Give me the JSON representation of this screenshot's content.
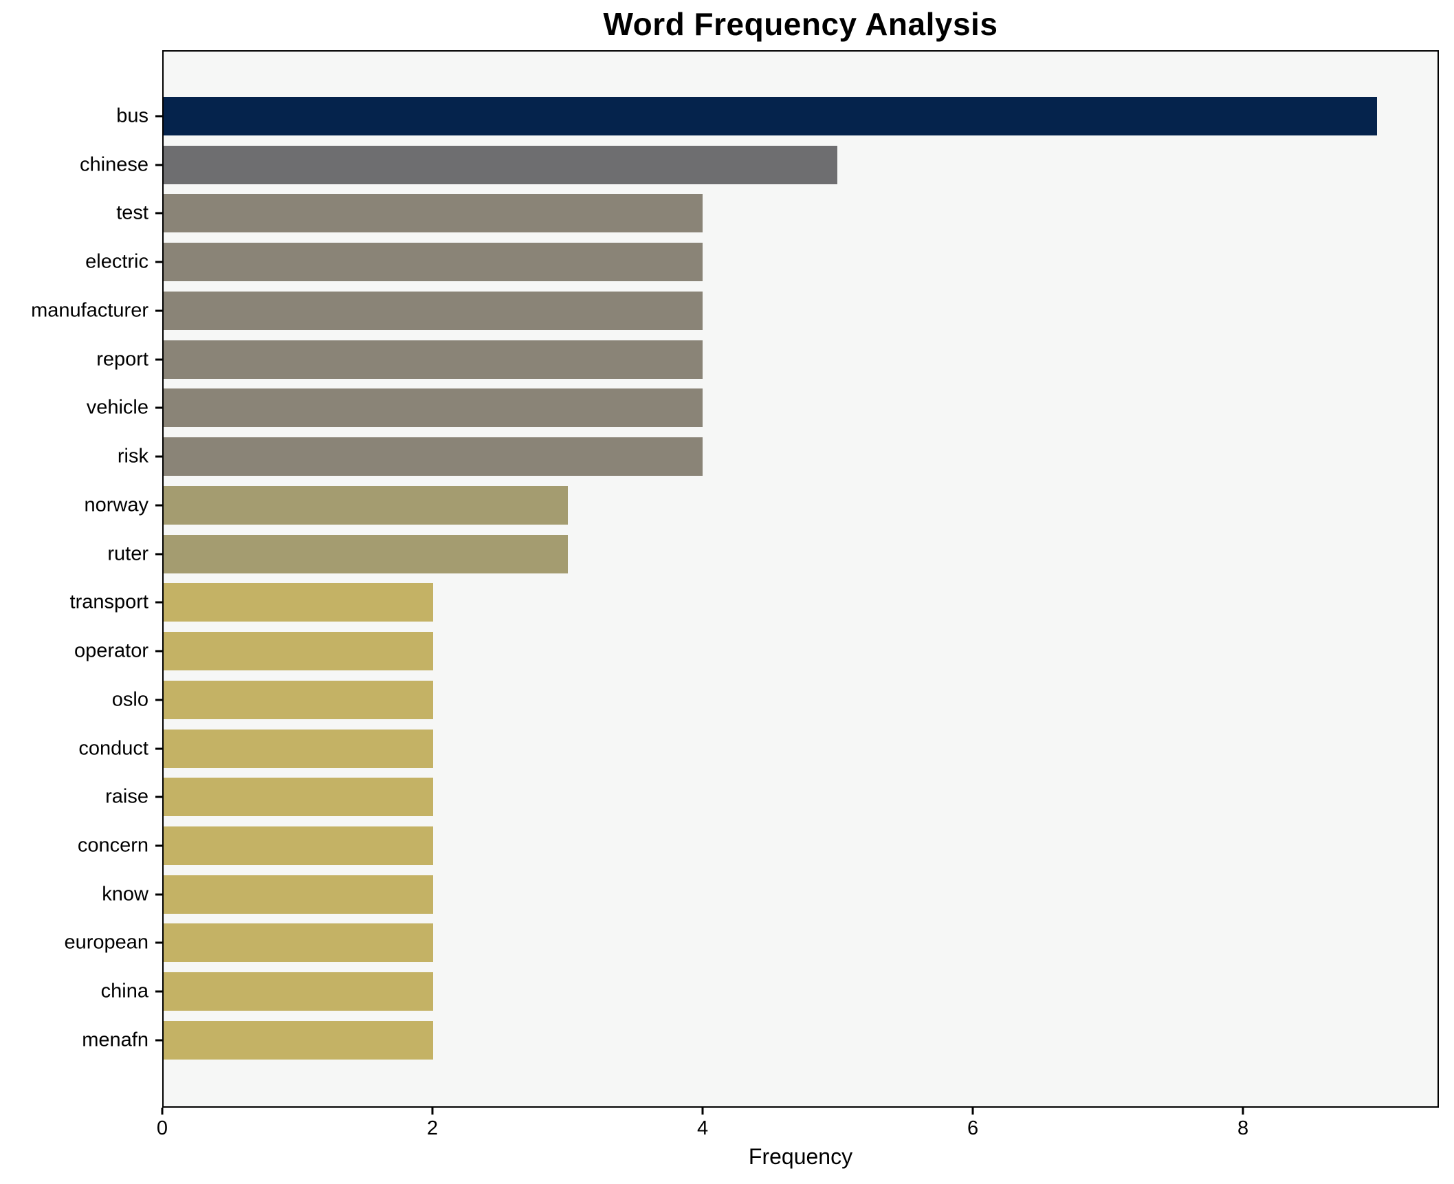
{
  "chart_data": {
    "type": "bar",
    "orientation": "horizontal",
    "title": "Word Frequency Analysis",
    "xlabel": "Frequency",
    "ylabel": "",
    "categories": [
      "bus",
      "chinese",
      "test",
      "electric",
      "manufacturer",
      "report",
      "vehicle",
      "risk",
      "norway",
      "ruter",
      "transport",
      "operator",
      "oslo",
      "conduct",
      "raise",
      "concern",
      "know",
      "european",
      "china",
      "menafn"
    ],
    "values": [
      9,
      5,
      4,
      4,
      4,
      4,
      4,
      4,
      3,
      3,
      2,
      2,
      2,
      2,
      2,
      2,
      2,
      2,
      2,
      2
    ],
    "bar_colors": [
      "#05234c",
      "#6e6e70",
      "#8a8477",
      "#8a8477",
      "#8a8477",
      "#8a8477",
      "#8a8477",
      "#8a8477",
      "#a49c70",
      "#a49c70",
      "#c4b265",
      "#c4b265",
      "#c4b265",
      "#c4b265",
      "#c4b265",
      "#c4b265",
      "#c4b265",
      "#c4b265",
      "#c4b265",
      "#c4b265"
    ],
    "xlim": [
      0,
      9.45
    ],
    "xticks": [
      0,
      2,
      4,
      6,
      8
    ],
    "grid": false,
    "legend": null,
    "plot_bg": "#f6f7f6",
    "figure_bg": "#ffffff",
    "spine_color": "#000000"
  }
}
